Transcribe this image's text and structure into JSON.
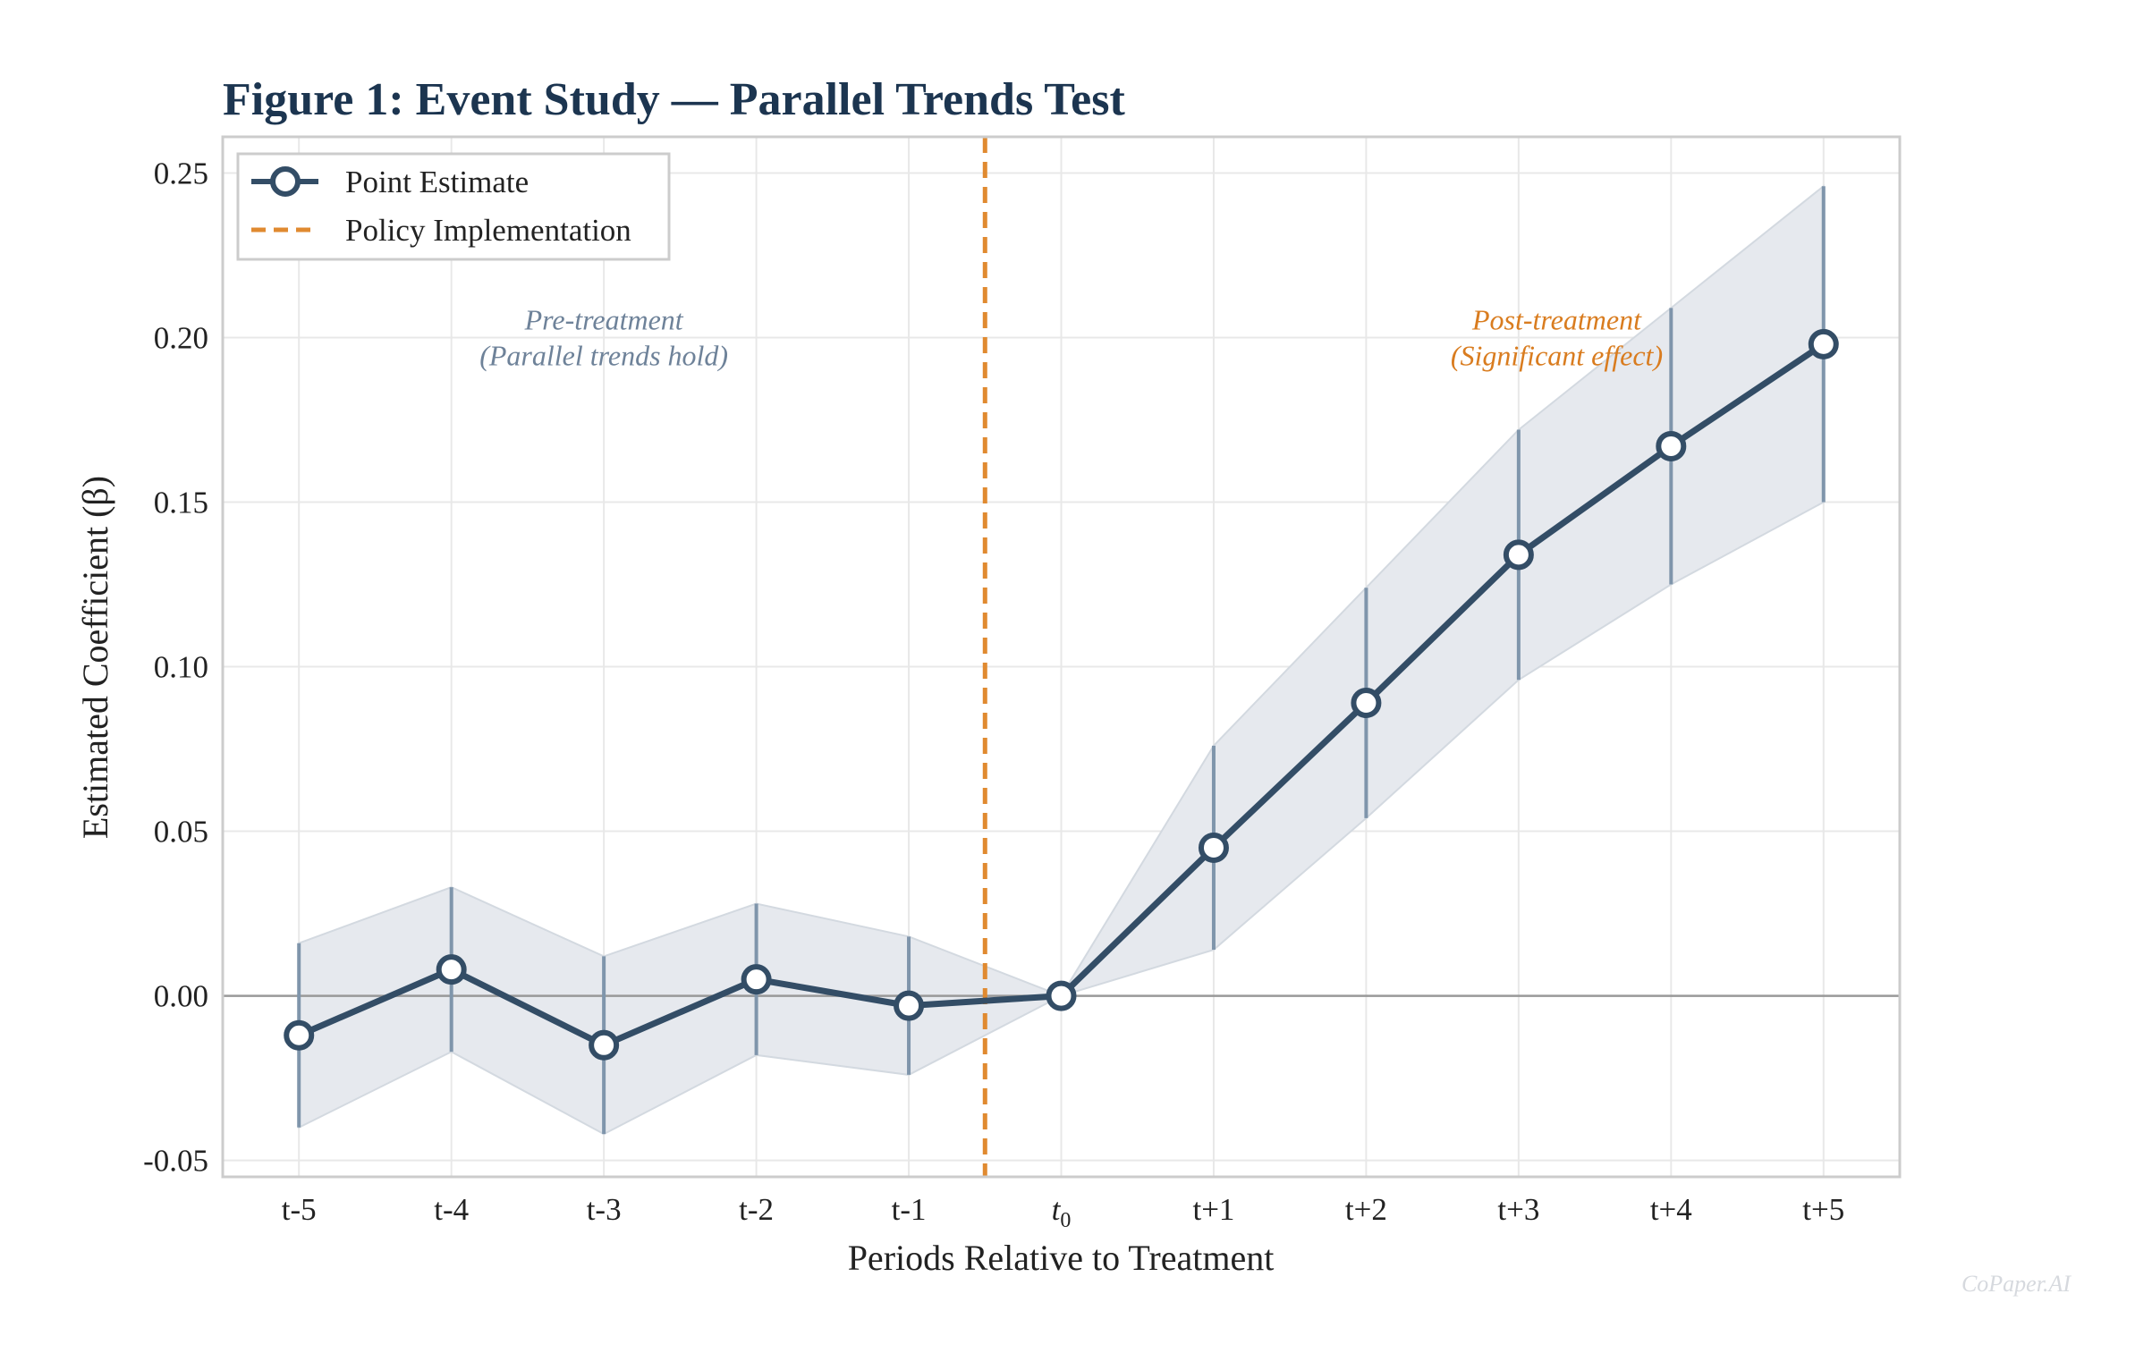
{
  "chart_data": {
    "type": "line",
    "title": "Figure 1: Event Study — Parallel Trends Test",
    "xlabel": "Periods Relative to Treatment",
    "ylabel": "Estimated Coefficient (β)",
    "categories": [
      "t-5",
      "t-4",
      "t-3",
      "t-2",
      "t-1",
      "t0",
      "t+1",
      "t+2",
      "t+3",
      "t+4",
      "t+5"
    ],
    "category_labels": [
      {
        "base": "t-5",
        "sub": ""
      },
      {
        "base": "t-4",
        "sub": ""
      },
      {
        "base": "t-3",
        "sub": ""
      },
      {
        "base": "t-2",
        "sub": ""
      },
      {
        "base": "t-1",
        "sub": ""
      },
      {
        "base": "t",
        "sub": "0"
      },
      {
        "base": "t+1",
        "sub": ""
      },
      {
        "base": "t+2",
        "sub": ""
      },
      {
        "base": "t+3",
        "sub": ""
      },
      {
        "base": "t+4",
        "sub": ""
      },
      {
        "base": "t+5",
        "sub": ""
      }
    ],
    "series": [
      {
        "name": "Point Estimate",
        "values": [
          -0.012,
          0.008,
          -0.015,
          0.005,
          -0.003,
          0.0,
          0.045,
          0.089,
          0.134,
          0.167,
          0.198
        ],
        "ci_lower": [
          -0.04,
          -0.017,
          -0.042,
          -0.018,
          -0.024,
          0.0,
          0.014,
          0.054,
          0.096,
          0.125,
          0.15
        ],
        "ci_upper": [
          0.016,
          0.033,
          0.012,
          0.028,
          0.018,
          0.0,
          0.076,
          0.124,
          0.172,
          0.209,
          0.246
        ]
      }
    ],
    "vline": {
      "name": "Policy Implementation",
      "position": 4.5
    },
    "ylim": [
      -0.055,
      0.261
    ],
    "yticks": [
      -0.05,
      0.0,
      0.05,
      0.1,
      0.15,
      0.2,
      0.25
    ],
    "ytick_labels": [
      "-0.05",
      "0.00",
      "0.05",
      "0.10",
      "0.15",
      "0.20",
      "0.25"
    ],
    "xlim": [
      -0.5,
      10.5
    ],
    "grid": true,
    "legend_position": "top-left",
    "annotations": [
      {
        "lines": [
          "Pre-treatment",
          "(Parallel trends hold)"
        ],
        "x": 2.0,
        "y": 0.197,
        "style": "pre"
      },
      {
        "lines": [
          "Post-treatment",
          "(Significant effect)"
        ],
        "x": 8.25,
        "y": 0.197,
        "style": "post"
      }
    ],
    "colors": {
      "line": "#334d66",
      "marker_fill": "#ffffff",
      "ci_band": "#e6e9ee",
      "ci_band_edge": "#d3d9e0",
      "error_bar": "#7f95ab",
      "vline": "#e08a30",
      "zero_line": "#999999",
      "grid": "#e8e8e8",
      "frame": "#cccccc",
      "title": "#1c3550",
      "pre_text": "#6e8299",
      "post_text": "#d97c1f"
    }
  },
  "watermark": "CoPaper.AI"
}
